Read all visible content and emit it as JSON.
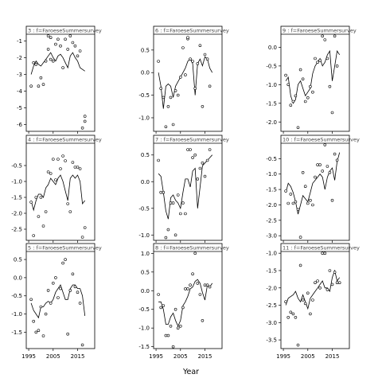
{
  "chart_data": {
    "type": "line",
    "xlabel": "Year",
    "xlim": [
      1994,
      2022
    ],
    "x_ticks": [
      "1995",
      "2005",
      "2015"
    ],
    "panels": [
      {
        "strip": "3 : f=FaroeseSummersurvey",
        "ylim": [
          -6.4,
          -0.6
        ],
        "yticks": [
          -6,
          -5,
          -4,
          -3,
          -2,
          -1
        ],
        "x": [
          1996,
          1997,
          1998,
          1999,
          2000,
          2001,
          2002,
          2003,
          2004,
          2005,
          2006,
          2007,
          2008,
          2009,
          2010,
          2011,
          2012,
          2013,
          2014,
          2015,
          2016,
          2017,
          2018
        ],
        "fit": [
          -3.0,
          -2.5,
          -2.2,
          -2.4,
          -2.5,
          -2.3,
          -2.1,
          -1.9,
          -1.7,
          -2.0,
          -2.2,
          -1.9,
          -1.8,
          -2.0,
          -2.3,
          -2.6,
          -1.9,
          -1.7,
          -2.0,
          -2.2,
          -2.6,
          -2.7,
          -2.8
        ],
        "obs_x": [
          1996,
          1997,
          1998,
          1999,
          2000,
          2001,
          2002,
          2003,
          2003,
          2004,
          2004,
          2005,
          2006,
          2007,
          2008,
          2009,
          2010,
          2011,
          2012,
          2013,
          2014,
          2015,
          2016,
          2017,
          2018,
          2018
        ],
        "obs": [
          -3.7,
          -2.3,
          -2.4,
          -3.7,
          -3.2,
          -3.6,
          -2.2,
          -1.5,
          -0.7,
          -0.8,
          -2.1,
          -2.2,
          -1.2,
          -0.9,
          -1.3,
          -2.6,
          -0.9,
          -1.5,
          -0.7,
          -1.1,
          -1.3,
          -1.9,
          -1.6,
          -6.2,
          -5.8,
          -5.5
        ]
      },
      {
        "strip": "6 : f=FaroeseSummersurvey",
        "ylim": [
          -1.3,
          0.85
        ],
        "yticks": [
          -1.0,
          -0.5,
          0.0,
          0.5
        ],
        "x": [
          1996,
          1997,
          1998,
          1999,
          2000,
          2001,
          2002,
          2003,
          2004,
          2005,
          2006,
          2007,
          2008,
          2009,
          2010,
          2011,
          2012,
          2013,
          2014,
          2015,
          2016,
          2017,
          2018
        ],
        "fit": [
          0.0,
          -0.3,
          -0.8,
          -0.3,
          -0.25,
          -0.3,
          -0.55,
          -0.3,
          -0.2,
          -0.1,
          0.0,
          0.1,
          0.25,
          0.3,
          0.2,
          -0.5,
          0.2,
          0.3,
          0.15,
          0.35,
          0.3,
          0.1,
          0.0
        ],
        "obs_x": [
          1996,
          1997,
          1998,
          1999,
          2000,
          2001,
          2002,
          2003,
          2004,
          2005,
          2006,
          2007,
          2008,
          2008,
          2009,
          2010,
          2011,
          2012,
          2013,
          2014,
          2015,
          2016,
          2017
        ],
        "obs": [
          0.25,
          -0.35,
          -0.55,
          -1.2,
          -0.75,
          -0.55,
          -1.15,
          -0.4,
          -0.5,
          -0.1,
          0.55,
          -0.05,
          0.75,
          0.78,
          0.3,
          0.25,
          -0.35,
          0.2,
          0.6,
          -0.75,
          0.4,
          0.3,
          -0.3
        ]
      },
      {
        "strip": "9 : f=FaroeseSummersurvey",
        "ylim": [
          -2.25,
          0.35
        ],
        "yticks": [
          -2.0,
          -1.5,
          -1.0,
          -0.5,
          0.0
        ],
        "x": [
          1996,
          1997,
          1998,
          1999,
          2000,
          2001,
          2002,
          2003,
          2004,
          2005,
          2006,
          2007,
          2008,
          2009,
          2010,
          2011,
          2012,
          2013,
          2014,
          2015,
          2016,
          2017,
          2018
        ],
        "fit": [
          -0.9,
          -0.8,
          -1.3,
          -1.5,
          -1.4,
          -1.0,
          -0.9,
          -1.1,
          -1.3,
          -1.2,
          -1.1,
          -0.7,
          -0.5,
          -0.4,
          -0.3,
          -0.5,
          -0.4,
          -0.2,
          -0.1,
          -0.9,
          -0.5,
          -0.1,
          -0.2
        ],
        "obs_x": [
          1996,
          1997,
          1998,
          1999,
          2000,
          2001,
          2002,
          2003,
          2004,
          2005,
          2006,
          2007,
          2008,
          2009,
          2010,
          2011,
          2012,
          2013,
          2014,
          2015,
          2016,
          2017
        ],
        "obs": [
          -0.75,
          -1.0,
          -1.55,
          -1.45,
          -1.3,
          -2.15,
          -0.6,
          -0.85,
          -1.45,
          -1.35,
          -1.05,
          -1.2,
          -0.3,
          -0.4,
          -0.35,
          0.3,
          0.2,
          -0.3,
          -1.05,
          -1.75,
          0.3,
          -0.5
        ]
      },
      {
        "strip": "4 : f=FaroeseSummersurvey",
        "ylim": [
          -2.85,
          0.2
        ],
        "yticks": [
          -2.5,
          -2.0,
          -1.5,
          -1.0,
          -0.5
        ],
        "x": [
          1996,
          1997,
          1998,
          1999,
          2000,
          2001,
          2002,
          2003,
          2004,
          2005,
          2006,
          2007,
          2008,
          2009,
          2010,
          2011,
          2012,
          2013,
          2014,
          2015,
          2016,
          2017,
          2018
        ],
        "fit": [
          -1.6,
          -1.9,
          -1.6,
          -1.4,
          -1.4,
          -1.5,
          -1.2,
          -1.1,
          -0.9,
          -1.0,
          -1.1,
          -0.9,
          -0.8,
          -1.0,
          -1.3,
          -1.6,
          -0.9,
          -0.8,
          -0.9,
          -0.8,
          -1.0,
          -1.7,
          -1.6
        ],
        "obs_x": [
          1996,
          1997,
          1998,
          1999,
          2000,
          2001,
          2002,
          2003,
          2004,
          2005,
          2006,
          2007,
          2008,
          2009,
          2010,
          2011,
          2012,
          2013,
          2014,
          2015,
          2016,
          2017,
          2018
        ],
        "obs": [
          -1.65,
          -2.7,
          -1.5,
          -2.1,
          -1.5,
          -2.4,
          -1.95,
          -0.7,
          -0.75,
          -0.3,
          -0.95,
          -0.3,
          -0.6,
          -0.2,
          -0.35,
          -1.7,
          -1.95,
          -0.4,
          -0.55,
          -0.55,
          -0.6,
          -2.75,
          -2.45
        ]
      },
      {
        "strip": "7 : f=FaroeseSummersurvey",
        "ylim": [
          -1.1,
          0.72
        ],
        "yticks": [
          -1.0,
          -0.5,
          0.0,
          0.5
        ],
        "x": [
          1996,
          1997,
          1998,
          1999,
          2000,
          2001,
          2002,
          2003,
          2004,
          2005,
          2006,
          2007,
          2008,
          2009,
          2010,
          2011,
          2012,
          2013,
          2014,
          2015,
          2016,
          2017,
          2018
        ],
        "fit": [
          0.15,
          0.1,
          -0.2,
          -0.55,
          -0.7,
          -0.3,
          -0.25,
          -0.35,
          -0.4,
          -0.5,
          -0.2,
          0.05,
          0.05,
          -0.1,
          0.2,
          0.25,
          -0.5,
          -0.1,
          0.3,
          0.35,
          0.4,
          0.45,
          0.5
        ],
        "obs_x": [
          1996,
          1997,
          1998,
          1999,
          2000,
          2001,
          2002,
          2003,
          2004,
          2005,
          2006,
          2007,
          2008,
          2009,
          2010,
          2011,
          2012,
          2013,
          2014,
          2015,
          2016,
          2017
        ],
        "obs": [
          0.4,
          -0.2,
          -0.2,
          -1.05,
          -0.9,
          -0.4,
          -0.4,
          -1.0,
          -0.25,
          -0.6,
          -0.4,
          -0.6,
          0.6,
          0.6,
          0.45,
          0.5,
          0.05,
          0.25,
          0.35,
          0.1,
          0.4,
          0.6
        ]
      },
      {
        "strip": "10 : f=FaroeseSummersurvey",
        "ylim": [
          -3.15,
          0.0
        ],
        "yticks": [
          -3.0,
          -2.5,
          -2.0,
          -1.5,
          -1.0,
          -0.5
        ],
        "x": [
          1996,
          1997,
          1998,
          1999,
          2000,
          2001,
          2002,
          2003,
          2004,
          2005,
          2006,
          2007,
          2008,
          2009,
          2010,
          2011,
          2012,
          2013,
          2014,
          2015,
          2016,
          2017,
          2018
        ],
        "fit": [
          -1.6,
          -1.3,
          -1.4,
          -1.6,
          -1.9,
          -2.3,
          -2.0,
          -1.7,
          -1.8,
          -1.9,
          -1.6,
          -1.3,
          -1.2,
          -1.1,
          -1.0,
          -1.1,
          -1.5,
          -1.1,
          -0.9,
          -0.8,
          -1.2,
          -0.6,
          -0.3
        ],
        "obs_x": [
          1996,
          1997,
          1998,
          1999,
          2000,
          2001,
          2002,
          2003,
          2004,
          2005,
          2006,
          2007,
          2008,
          2009,
          2010,
          2011,
          2012,
          2013,
          2014,
          2015,
          2016,
          2017
        ],
        "obs": [
          -1.55,
          -1.95,
          -1.65,
          -1.95,
          -1.9,
          -2.15,
          -3.05,
          -0.95,
          -1.4,
          -1.95,
          -1.85,
          -2.0,
          -1.1,
          -0.7,
          -0.7,
          -0.9,
          -0.05,
          -0.75,
          -0.95,
          -1.85,
          -0.35,
          -0.55
        ]
      },
      {
        "strip": "5 : f=FaroeseSummersurvey",
        "ylim": [
          -1.95,
          0.72
        ],
        "yticks": [
          -1.5,
          -1.0,
          -0.5,
          0.0,
          0.5
        ],
        "x": [
          1996,
          1997,
          1998,
          1999,
          2000,
          2001,
          2002,
          2003,
          2004,
          2005,
          2006,
          2007,
          2008,
          2009,
          2010,
          2011,
          2012,
          2013,
          2014,
          2015,
          2016,
          2017,
          2018
        ],
        "fit": [
          -0.7,
          -0.9,
          -1.0,
          -1.1,
          -0.8,
          -0.8,
          -0.7,
          -0.65,
          -0.7,
          -0.6,
          -0.4,
          -0.3,
          -0.2,
          -0.4,
          -0.6,
          -0.6,
          -0.3,
          -0.2,
          -0.2,
          -0.3,
          -0.3,
          -0.5,
          -1.05
        ],
        "obs_x": [
          1996,
          1997,
          1998,
          1999,
          2000,
          2001,
          2002,
          2003,
          2004,
          2005,
          2006,
          2007,
          2008,
          2009,
          2010,
          2011,
          2012,
          2013,
          2014,
          2015,
          2016,
          2017
        ],
        "obs": [
          -0.6,
          -1.2,
          -1.5,
          -1.45,
          -0.8,
          -1.6,
          -1.0,
          -0.35,
          -0.7,
          -0.15,
          0.0,
          -0.55,
          -0.3,
          0.4,
          0.5,
          -1.55,
          -0.35,
          0.1,
          -0.25,
          -0.4,
          -0.7,
          -1.85
        ]
      },
      {
        "strip": "8 : f=FaroeseSummersurvey",
        "ylim": [
          -1.55,
          1.05
        ],
        "yticks": [
          -1.5,
          -1.0,
          -0.5,
          0.0,
          0.5,
          1.0
        ],
        "x": [
          1996,
          1997,
          1998,
          1999,
          2000,
          2001,
          2002,
          2003,
          2004,
          2005,
          2006,
          2007,
          2008,
          2009,
          2010,
          2011,
          2012,
          2013,
          2014,
          2015,
          2016,
          2017,
          2018
        ],
        "fit": [
          -0.3,
          -0.3,
          -0.5,
          -0.9,
          -0.9,
          -0.7,
          -0.6,
          -0.8,
          -0.95,
          -0.8,
          -0.4,
          -0.3,
          -0.15,
          0.05,
          0.1,
          0.25,
          0.3,
          0.2,
          -0.05,
          -0.25,
          0.15,
          0.1,
          0.2
        ],
        "obs_x": [
          1996,
          1997,
          1998,
          1999,
          2000,
          2001,
          2002,
          2003,
          2004,
          2005,
          2006,
          2007,
          2008,
          2009,
          2010,
          2011,
          2012,
          2013,
          2014,
          2015,
          2016,
          2017
        ],
        "obs": [
          -0.1,
          -0.45,
          -0.4,
          -1.2,
          -1.2,
          -0.95,
          -1.5,
          -0.5,
          -1.0,
          -0.95,
          -0.45,
          0.05,
          0.05,
          0.15,
          0.45,
          1.0,
          0.2,
          -0.1,
          -0.8,
          0.15,
          0.15,
          0.1
        ]
      },
      {
        "strip": "11 : f=FaroeseSummersurvey",
        "ylim": [
          -3.75,
          -0.95
        ],
        "yticks": [
          -3.5,
          -3.0,
          -2.5,
          -2.0,
          -1.5,
          -1.0
        ],
        "x": [
          1996,
          1997,
          1998,
          1999,
          2000,
          2001,
          2002,
          2003,
          2004,
          2005,
          2006,
          2007,
          2008,
          2009,
          2010,
          2011,
          2012,
          2013,
          2014,
          2015,
          2016,
          2017,
          2018
        ],
        "fit": [
          -2.5,
          -2.3,
          -2.25,
          -2.2,
          -2.1,
          -2.3,
          -2.4,
          -2.2,
          -2.4,
          -2.6,
          -2.3,
          -2.2,
          -2.1,
          -2.0,
          -1.9,
          -1.8,
          -2.0,
          -2.0,
          -2.1,
          -1.7,
          -1.5,
          -1.8,
          -1.7
        ],
        "obs_x": [
          1996,
          1997,
          1998,
          1999,
          2000,
          2001,
          2002,
          2003,
          2004,
          2005,
          2006,
          2007,
          2008,
          2009,
          2010,
          2011,
          2012,
          2013,
          2014,
          2015,
          2016,
          2017,
          2018
        ],
        "obs": [
          -2.4,
          -2.85,
          -2.7,
          -2.75,
          -2.85,
          -3.65,
          -1.35,
          -2.35,
          -2.45,
          -2.15,
          -2.75,
          -2.35,
          -1.85,
          -1.8,
          -2.0,
          -1.0,
          -1.0,
          -2.05,
          -1.5,
          -1.9,
          -1.55,
          -1.85,
          -1.85
        ]
      }
    ]
  }
}
